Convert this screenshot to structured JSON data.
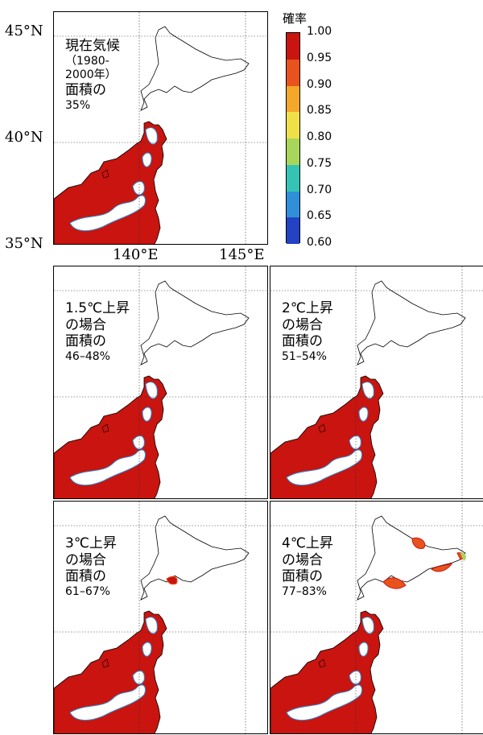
{
  "axes": {
    "lat_labels": [
      "45°N",
      "40°N",
      "35°N"
    ],
    "lon_labels": [
      "140°E",
      "145°E"
    ]
  },
  "colorbar": {
    "title": "確率",
    "ticks": [
      "1.00",
      "0.95",
      "0.90",
      "0.85",
      "0.80",
      "0.75",
      "0.70",
      "0.65",
      "0.60"
    ],
    "colors": [
      "#c9140f",
      "#e8531d",
      "#f4a72a",
      "#efe04a",
      "#a7d65a",
      "#35c4b4",
      "#2f8fd9",
      "#2442c4",
      "#141a8c"
    ]
  },
  "panels": [
    {
      "id": "current",
      "line1": "現在気候",
      "line2": "（1980-",
      "line3": "2000年）",
      "line4": "面積の",
      "pct": "35%"
    },
    {
      "id": "1p5",
      "line1": "1.5℃上昇",
      "line2": "の場合",
      "line3": "面積の",
      "pct": "46–48%"
    },
    {
      "id": "2",
      "line1": "2℃上昇",
      "line2": "の場合",
      "line3": "面積の",
      "pct": "51–54%"
    },
    {
      "id": "3",
      "line1": "3℃上昇",
      "line2": "の場合",
      "line3": "面積の",
      "pct": "61–67%"
    },
    {
      "id": "4",
      "line1": "4℃上昇",
      "line2": "の場合",
      "line3": "面積の",
      "pct": "77–83%"
    }
  ]
}
